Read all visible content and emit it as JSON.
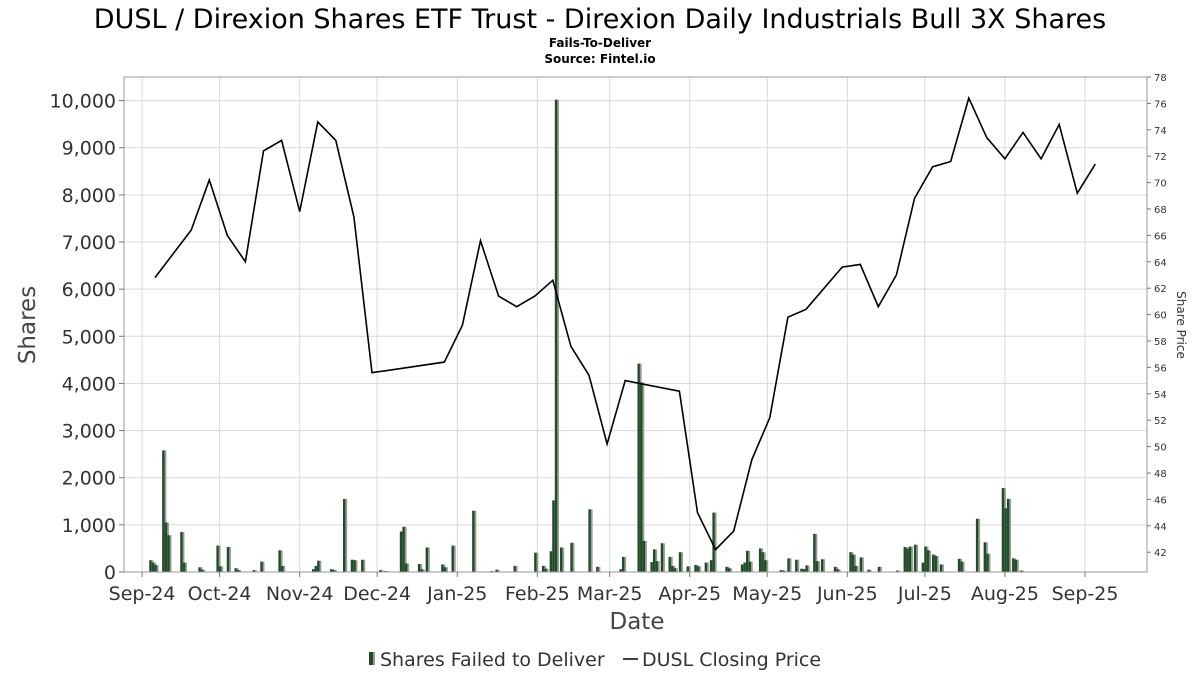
{
  "chart_data": {
    "type": "bar",
    "title": "DUSL / Direxion Shares ETF Trust - Direxion Daily Industrials Bull 3X Shares",
    "subtitle": "Fails-To-Deliver",
    "source": "Source: Fintel.io",
    "xlabel": "Date",
    "ylabel": "Shares",
    "ylabel_right": "Share Price",
    "x_range": [
      "2024-08-25",
      "2025-09-25"
    ],
    "ylim": [
      0,
      10500
    ],
    "ylim_right": [
      40.5,
      78
    ],
    "y_ticks": [
      "0",
      "1,000",
      "2,000",
      "3,000",
      "4,000",
      "5,000",
      "6,000",
      "7,000",
      "8,000",
      "9,000",
      "10,000"
    ],
    "y_right_ticks": [
      "42",
      "44",
      "46",
      "48",
      "50",
      "52",
      "54",
      "56",
      "58",
      "60",
      "62",
      "64",
      "66",
      "68",
      "70",
      "72",
      "74",
      "76",
      "78"
    ],
    "x_ticks": [
      {
        "label": "Sep-24",
        "date": "2024-09-01"
      },
      {
        "label": "Oct-24",
        "date": "2024-10-01"
      },
      {
        "label": "Nov-24",
        "date": "2024-11-01"
      },
      {
        "label": "Dec-24",
        "date": "2024-12-01"
      },
      {
        "label": "Jan-25",
        "date": "2025-01-01"
      },
      {
        "label": "Feb-25",
        "date": "2025-02-01"
      },
      {
        "label": "Mar-25",
        "date": "2025-03-01"
      },
      {
        "label": "Apr-25",
        "date": "2025-04-01"
      },
      {
        "label": "May-25",
        "date": "2025-05-01"
      },
      {
        "label": "Jun-25",
        "date": "2025-06-01"
      },
      {
        "label": "Jul-25",
        "date": "2025-07-01"
      },
      {
        "label": "Aug-25",
        "date": "2025-08-01"
      },
      {
        "label": "Sep-25",
        "date": "2025-09-01"
      }
    ],
    "grid": true,
    "legend_position": "bottom",
    "colors": {
      "bars": "#1f4d25",
      "bar_shadow": "#9a9a9a",
      "line": "#000000"
    },
    "series": [
      {
        "name": "Shares Failed to Deliver",
        "type": "bar",
        "points": [
          [
            "2024-09-04",
            250
          ],
          [
            "2024-09-05",
            200
          ],
          [
            "2024-09-06",
            150
          ],
          [
            "2024-09-09",
            2580
          ],
          [
            "2024-09-10",
            1050
          ],
          [
            "2024-09-11",
            780
          ],
          [
            "2024-09-16",
            850
          ],
          [
            "2024-09-17",
            200
          ],
          [
            "2024-09-23",
            100
          ],
          [
            "2024-09-24",
            50
          ],
          [
            "2024-09-30",
            560
          ],
          [
            "2024-10-01",
            120
          ],
          [
            "2024-10-04",
            530
          ],
          [
            "2024-10-07",
            80
          ],
          [
            "2024-10-08",
            40
          ],
          [
            "2024-10-14",
            40
          ],
          [
            "2024-10-17",
            220
          ],
          [
            "2024-10-24",
            460
          ],
          [
            "2024-10-25",
            130
          ],
          [
            "2024-11-06",
            60
          ],
          [
            "2024-11-07",
            130
          ],
          [
            "2024-11-08",
            240
          ],
          [
            "2024-11-13",
            60
          ],
          [
            "2024-11-14",
            40
          ],
          [
            "2024-11-18",
            1550
          ],
          [
            "2024-11-21",
            260
          ],
          [
            "2024-11-22",
            250
          ],
          [
            "2024-11-25",
            260
          ],
          [
            "2024-12-02",
            40
          ],
          [
            "2024-12-04",
            20
          ],
          [
            "2024-12-10",
            860
          ],
          [
            "2024-12-11",
            960
          ],
          [
            "2024-12-12",
            180
          ],
          [
            "2024-12-17",
            170
          ],
          [
            "2024-12-18",
            60
          ],
          [
            "2024-12-20",
            520
          ],
          [
            "2024-12-26",
            160
          ],
          [
            "2024-12-27",
            100
          ],
          [
            "2024-12-30",
            560
          ],
          [
            "2025-01-07",
            1300
          ],
          [
            "2025-01-14",
            20
          ],
          [
            "2025-01-16",
            50
          ],
          [
            "2025-01-23",
            130
          ],
          [
            "2025-01-31",
            410
          ],
          [
            "2025-02-03",
            130
          ],
          [
            "2025-02-04",
            70
          ],
          [
            "2025-02-06",
            440
          ],
          [
            "2025-02-07",
            1520
          ],
          [
            "2025-02-08",
            10020
          ],
          [
            "2025-02-10",
            520
          ],
          [
            "2025-02-14",
            620
          ],
          [
            "2025-02-21",
            1330
          ],
          [
            "2025-02-24",
            110
          ],
          [
            "2025-03-05",
            60
          ],
          [
            "2025-03-06",
            320
          ],
          [
            "2025-03-12",
            4420
          ],
          [
            "2025-03-13",
            4020
          ],
          [
            "2025-03-14",
            660
          ],
          [
            "2025-03-17",
            210
          ],
          [
            "2025-03-18",
            480
          ],
          [
            "2025-03-19",
            230
          ],
          [
            "2025-03-21",
            610
          ],
          [
            "2025-03-24",
            320
          ],
          [
            "2025-03-25",
            130
          ],
          [
            "2025-03-26",
            80
          ],
          [
            "2025-03-28",
            420
          ],
          [
            "2025-03-31",
            120
          ],
          [
            "2025-04-03",
            150
          ],
          [
            "2025-04-04",
            120
          ],
          [
            "2025-04-07",
            200
          ],
          [
            "2025-04-09",
            250
          ],
          [
            "2025-04-10",
            1260
          ],
          [
            "2025-04-15",
            110
          ],
          [
            "2025-04-16",
            80
          ],
          [
            "2025-04-21",
            160
          ],
          [
            "2025-04-22",
            200
          ],
          [
            "2025-04-23",
            450
          ],
          [
            "2025-04-24",
            220
          ],
          [
            "2025-04-28",
            500
          ],
          [
            "2025-04-29",
            420
          ],
          [
            "2025-04-30",
            250
          ],
          [
            "2025-05-06",
            40
          ],
          [
            "2025-05-07",
            30
          ],
          [
            "2025-05-09",
            290
          ],
          [
            "2025-05-12",
            260
          ],
          [
            "2025-05-14",
            70
          ],
          [
            "2025-05-15",
            60
          ],
          [
            "2025-05-16",
            140
          ],
          [
            "2025-05-19",
            810
          ],
          [
            "2025-05-20",
            230
          ],
          [
            "2025-05-22",
            270
          ],
          [
            "2025-05-27",
            110
          ],
          [
            "2025-05-28",
            60
          ],
          [
            "2025-06-02",
            420
          ],
          [
            "2025-06-03",
            370
          ],
          [
            "2025-06-04",
            130
          ],
          [
            "2025-06-06",
            310
          ],
          [
            "2025-06-09",
            50
          ],
          [
            "2025-06-13",
            110
          ],
          [
            "2025-06-20",
            30
          ],
          [
            "2025-06-23",
            530
          ],
          [
            "2025-06-24",
            500
          ],
          [
            "2025-06-25",
            540
          ],
          [
            "2025-06-27",
            580
          ],
          [
            "2025-06-30",
            200
          ],
          [
            "2025-07-01",
            540
          ],
          [
            "2025-07-02",
            460
          ],
          [
            "2025-07-04",
            370
          ],
          [
            "2025-07-05",
            340
          ],
          [
            "2025-07-07",
            160
          ],
          [
            "2025-07-14",
            280
          ],
          [
            "2025-07-15",
            220
          ],
          [
            "2025-07-21",
            1130
          ],
          [
            "2025-07-24",
            630
          ],
          [
            "2025-07-25",
            390
          ],
          [
            "2025-07-31",
            1780
          ],
          [
            "2025-08-01",
            1350
          ],
          [
            "2025-08-02",
            1550
          ],
          [
            "2025-08-04",
            290
          ],
          [
            "2025-08-05",
            260
          ],
          [
            "2025-08-07",
            30
          ]
        ]
      },
      {
        "name": "DUSL Closing Price",
        "type": "line",
        "points": [
          [
            "2024-09-06",
            62.8
          ],
          [
            "2024-09-20",
            66.4
          ],
          [
            "2024-09-27",
            70.2
          ],
          [
            "2024-10-04",
            66.0
          ],
          [
            "2024-10-11",
            64.0
          ],
          [
            "2024-10-18",
            72.4
          ],
          [
            "2024-10-25",
            73.2
          ],
          [
            "2024-11-01",
            67.8
          ],
          [
            "2024-11-08",
            74.6
          ],
          [
            "2024-11-15",
            73.2
          ],
          [
            "2024-11-22",
            67.4
          ],
          [
            "2024-11-29",
            55.6
          ],
          [
            "2024-12-27",
            56.4
          ],
          [
            "2025-01-03",
            59.2
          ],
          [
            "2025-01-10",
            65.6
          ],
          [
            "2025-01-17",
            61.4
          ],
          [
            "2025-01-24",
            60.6
          ],
          [
            "2025-01-31",
            61.4
          ],
          [
            "2025-02-07",
            62.6
          ],
          [
            "2025-02-14",
            57.6
          ],
          [
            "2025-02-21",
            55.4
          ],
          [
            "2025-02-28",
            50.2
          ],
          [
            "2025-03-07",
            55.0
          ],
          [
            "2025-03-28",
            54.2
          ],
          [
            "2025-04-04",
            45.0
          ],
          [
            "2025-04-11",
            42.2
          ],
          [
            "2025-04-18",
            43.6
          ],
          [
            "2025-04-25",
            49.0
          ],
          [
            "2025-05-02",
            52.2
          ],
          [
            "2025-05-09",
            59.8
          ],
          [
            "2025-05-16",
            60.4
          ],
          [
            "2025-05-30",
            63.6
          ],
          [
            "2025-06-06",
            63.8
          ],
          [
            "2025-06-13",
            60.6
          ],
          [
            "2025-06-20",
            63.0
          ],
          [
            "2025-06-27",
            68.8
          ],
          [
            "2025-07-04",
            71.2
          ],
          [
            "2025-07-11",
            71.6
          ],
          [
            "2025-07-18",
            76.4
          ],
          [
            "2025-07-25",
            73.4
          ],
          [
            "2025-08-01",
            71.8
          ],
          [
            "2025-08-08",
            73.8
          ],
          [
            "2025-08-15",
            71.8
          ],
          [
            "2025-08-22",
            74.4
          ],
          [
            "2025-08-29",
            69.2
          ],
          [
            "2025-09-05",
            71.4
          ]
        ]
      }
    ]
  }
}
